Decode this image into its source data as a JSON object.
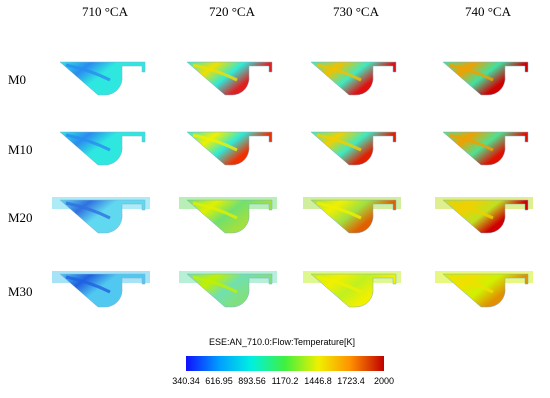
{
  "columns": [
    "710 °CA",
    "720 °CA",
    "730 °CA",
    "740 °CA"
  ],
  "rows": [
    "M0",
    "M10",
    "M20",
    "M30"
  ],
  "colorbar": {
    "title": "ESE:AN_710.0:Flow:Temperature[K]",
    "ticks": [
      "340.34",
      "616.95",
      "893.56",
      "1170.2",
      "1446.8",
      "1723.4",
      "2000"
    ]
  }
}
